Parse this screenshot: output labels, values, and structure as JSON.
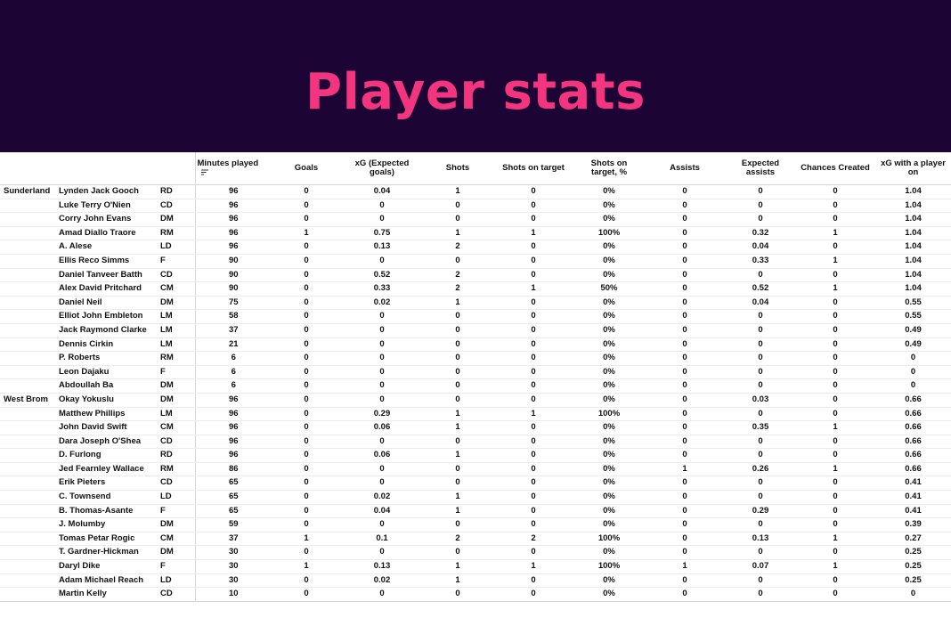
{
  "title": "Player stats",
  "columns": [
    "Minutes played",
    "Goals",
    "xG (Expected goals)",
    "Shots",
    "Shots on target",
    "Shots on target, %",
    "Assists",
    "Expected assists",
    "Chances Created",
    "xG with a player on"
  ],
  "sort_icon": "sort-descending-icon",
  "colors": {
    "banner": "#1c0434",
    "title": "#f3347f"
  },
  "rows": [
    {
      "team": "Sunderland",
      "player": "Lynden Jack Gooch",
      "pos": "RD",
      "vals": [
        "96",
        "0",
        "0.04",
        "1",
        "0",
        "0%",
        "0",
        "0",
        "0",
        "1.04"
      ]
    },
    {
      "team": "",
      "player": "Luke Terry O'Nien",
      "pos": "CD",
      "vals": [
        "96",
        "0",
        "0",
        "0",
        "0",
        "0%",
        "0",
        "0",
        "0",
        "1.04"
      ]
    },
    {
      "team": "",
      "player": "Corry John Evans",
      "pos": "DM",
      "vals": [
        "96",
        "0",
        "0",
        "0",
        "0",
        "0%",
        "0",
        "0",
        "0",
        "1.04"
      ]
    },
    {
      "team": "",
      "player": "Amad Diallo Traore",
      "pos": "RM",
      "vals": [
        "96",
        "1",
        "0.75",
        "1",
        "1",
        "100%",
        "0",
        "0.32",
        "1",
        "1.04"
      ]
    },
    {
      "team": "",
      "player": "A. Alese",
      "pos": "LD",
      "vals": [
        "96",
        "0",
        "0.13",
        "2",
        "0",
        "0%",
        "0",
        "0.04",
        "0",
        "1.04"
      ]
    },
    {
      "team": "",
      "player": "Ellis Reco Simms",
      "pos": "F",
      "vals": [
        "90",
        "0",
        "0",
        "0",
        "0",
        "0%",
        "0",
        "0.33",
        "1",
        "1.04"
      ]
    },
    {
      "team": "",
      "player": "Daniel Tanveer Batth",
      "pos": "CD",
      "vals": [
        "90",
        "0",
        "0.52",
        "2",
        "0",
        "0%",
        "0",
        "0",
        "0",
        "1.04"
      ]
    },
    {
      "team": "",
      "player": "Alex David Pritchard",
      "pos": "CM",
      "vals": [
        "90",
        "0",
        "0.33",
        "2",
        "1",
        "50%",
        "0",
        "0.52",
        "1",
        "1.04"
      ]
    },
    {
      "team": "",
      "player": "Daniel Neil",
      "pos": "DM",
      "vals": [
        "75",
        "0",
        "0.02",
        "1",
        "0",
        "0%",
        "0",
        "0.04",
        "0",
        "0.55"
      ]
    },
    {
      "team": "",
      "player": "Elliot John Embleton",
      "pos": "LM",
      "vals": [
        "58",
        "0",
        "0",
        "0",
        "0",
        "0%",
        "0",
        "0",
        "0",
        "0.55"
      ]
    },
    {
      "team": "",
      "player": "Jack Raymond Clarke",
      "pos": "LM",
      "vals": [
        "37",
        "0",
        "0",
        "0",
        "0",
        "0%",
        "0",
        "0",
        "0",
        "0.49"
      ]
    },
    {
      "team": "",
      "player": "Dennis Cirkin",
      "pos": "LM",
      "vals": [
        "21",
        "0",
        "0",
        "0",
        "0",
        "0%",
        "0",
        "0",
        "0",
        "0.49"
      ]
    },
    {
      "team": "",
      "player": "P. Roberts",
      "pos": "RM",
      "vals": [
        "6",
        "0",
        "0",
        "0",
        "0",
        "0%",
        "0",
        "0",
        "0",
        "0"
      ]
    },
    {
      "team": "",
      "player": "Leon Dajaku",
      "pos": "F",
      "vals": [
        "6",
        "0",
        "0",
        "0",
        "0",
        "0%",
        "0",
        "0",
        "0",
        "0"
      ]
    },
    {
      "team": "",
      "player": "Abdoullah Ba",
      "pos": "DM",
      "vals": [
        "6",
        "0",
        "0",
        "0",
        "0",
        "0%",
        "0",
        "0",
        "0",
        "0"
      ]
    },
    {
      "team": "West Brom",
      "player": "Okay Yokuslu",
      "pos": "DM",
      "vals": [
        "96",
        "0",
        "0",
        "0",
        "0",
        "0%",
        "0",
        "0.03",
        "0",
        "0.66"
      ]
    },
    {
      "team": "",
      "player": "Matthew Phillips",
      "pos": "LM",
      "vals": [
        "96",
        "0",
        "0.29",
        "1",
        "1",
        "100%",
        "0",
        "0",
        "0",
        "0.66"
      ]
    },
    {
      "team": "",
      "player": "John David Swift",
      "pos": "CM",
      "vals": [
        "96",
        "0",
        "0.06",
        "1",
        "0",
        "0%",
        "0",
        "0.35",
        "1",
        "0.66"
      ]
    },
    {
      "team": "",
      "player": "Dara Joseph O'Shea",
      "pos": "CD",
      "vals": [
        "96",
        "0",
        "0",
        "0",
        "0",
        "0%",
        "0",
        "0",
        "0",
        "0.66"
      ]
    },
    {
      "team": "",
      "player": "D. Furlong",
      "pos": "RD",
      "vals": [
        "96",
        "0",
        "0.06",
        "1",
        "0",
        "0%",
        "0",
        "0",
        "0",
        "0.66"
      ]
    },
    {
      "team": "",
      "player": "Jed Fearnley Wallace",
      "pos": "RM",
      "vals": [
        "86",
        "0",
        "0",
        "0",
        "0",
        "0%",
        "1",
        "0.26",
        "1",
        "0.66"
      ]
    },
    {
      "team": "",
      "player": "Erik Pieters",
      "pos": "CD",
      "vals": [
        "65",
        "0",
        "0",
        "0",
        "0",
        "0%",
        "0",
        "0",
        "0",
        "0.41"
      ]
    },
    {
      "team": "",
      "player": "C. Townsend",
      "pos": "LD",
      "vals": [
        "65",
        "0",
        "0.02",
        "1",
        "0",
        "0%",
        "0",
        "0",
        "0",
        "0.41"
      ]
    },
    {
      "team": "",
      "player": "B. Thomas-Asante",
      "pos": "F",
      "vals": [
        "65",
        "0",
        "0.04",
        "1",
        "0",
        "0%",
        "0",
        "0.29",
        "0",
        "0.41"
      ]
    },
    {
      "team": "",
      "player": "J. Molumby",
      "pos": "DM",
      "vals": [
        "59",
        "0",
        "0",
        "0",
        "0",
        "0%",
        "0",
        "0",
        "0",
        "0.39"
      ]
    },
    {
      "team": "",
      "player": "Tomas Petar Rogic",
      "pos": "CM",
      "vals": [
        "37",
        "1",
        "0.1",
        "2",
        "2",
        "100%",
        "0",
        "0.13",
        "1",
        "0.27"
      ]
    },
    {
      "team": "",
      "player": "T. Gardner-Hickman",
      "pos": "DM",
      "vals": [
        "30",
        "0",
        "0",
        "0",
        "0",
        "0%",
        "0",
        "0",
        "0",
        "0.25"
      ]
    },
    {
      "team": "",
      "player": "Daryl Dike",
      "pos": "F",
      "vals": [
        "30",
        "1",
        "0.13",
        "1",
        "1",
        "100%",
        "1",
        "0.07",
        "1",
        "0.25"
      ]
    },
    {
      "team": "",
      "player": "Adam Michael Reach",
      "pos": "LD",
      "vals": [
        "30",
        "0",
        "0.02",
        "1",
        "0",
        "0%",
        "0",
        "0",
        "0",
        "0.25"
      ]
    },
    {
      "team": "",
      "player": "Martin Kelly",
      "pos": "CD",
      "vals": [
        "10",
        "0",
        "0",
        "0",
        "0",
        "0%",
        "0",
        "0",
        "0",
        "0"
      ]
    }
  ]
}
